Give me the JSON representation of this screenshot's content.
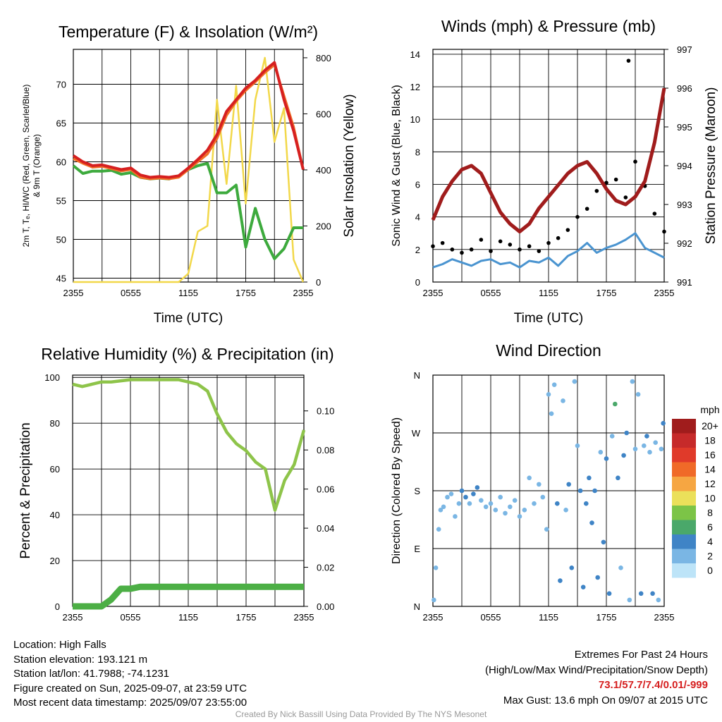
{
  "colors": {
    "temperature": "#d62020",
    "dewpoint": "#3daa3d",
    "heat_index": "#f07028",
    "insolation": "#f2d84a",
    "wind": "#4a94d0",
    "gust": "#000000",
    "pressure": "#a01c1c",
    "rh": "#8ec44a",
    "precip": "#4caf45",
    "extremes_text": "#d62020",
    "credit_text": "#999999"
  },
  "info": {
    "location": "Location: High Falls",
    "elevation": "Station elevation: 193.121 m",
    "latlon": "Station lat/lon: 41.7988; -74.1231",
    "created": "Figure created on Sun, 2025-09-07, at 23:59 UTC",
    "recent": "Most recent data timestamp: 2025/09/07 23:55:00"
  },
  "extremes": {
    "title": "Extremes For Past 24 Hours",
    "subtitle": "(High/Low/Max Wind/Precipitation/Snow Depth)",
    "values": "73.1/57.7/7.4/0.01/-999",
    "gust": "Max Gust: 13.6 mph On 09/07 at 2015 UTC"
  },
  "credit": "Created By Nick Bassill Using Data Provided By The NYS Mesonet",
  "chart_data": [
    {
      "type": "line",
      "title": "Temperature (F) & Insolation (W/m²)",
      "xlabel": "Time (UTC)",
      "ylabel_line1": "2m T, Tₑ, HI/WC (Red, Green, Scarlet/Blue)",
      "ylabel_line2": "& 9m T (Orange)",
      "ylabel_right": "Solar Insolation (Yellow)",
      "x_ticks": [
        "2355",
        "0555",
        "1155",
        "1755",
        "2355"
      ],
      "x": [
        0,
        1,
        2,
        3,
        4,
        5,
        6,
        7,
        8,
        9,
        10,
        11,
        12,
        13,
        14,
        15,
        16,
        17,
        18,
        19,
        20,
        21,
        22,
        23,
        24
      ],
      "ylim": [
        44.5,
        74.5
      ],
      "y_ticks": [
        45,
        50,
        55,
        60,
        65,
        70
      ],
      "ylim_right": [
        0,
        830
      ],
      "y_ticks_right": [
        0,
        200,
        400,
        600,
        800
      ],
      "series": [
        {
          "name": "Red",
          "axis": "left",
          "values": [
            60.8,
            60.0,
            59.5,
            59.6,
            59.3,
            59.0,
            59.2,
            58.3,
            58.0,
            58.1,
            58.0,
            58.2,
            59.2,
            60.3,
            61.5,
            63.5,
            66.5,
            68.0,
            69.5,
            70.5,
            71.8,
            72.8,
            68.0,
            64.0,
            59.0
          ]
        },
        {
          "name": "Orange",
          "axis": "left",
          "values": [
            60.4,
            59.8,
            59.3,
            59.4,
            59.1,
            58.8,
            59.0,
            58.0,
            57.8,
            57.9,
            57.8,
            58.0,
            59.0,
            60.0,
            61.0,
            63.0,
            66.0,
            67.8,
            69.2,
            70.3,
            71.5,
            72.5,
            68.5,
            64.5,
            59.0
          ]
        },
        {
          "name": "Green",
          "axis": "left",
          "values": [
            59.5,
            58.5,
            58.8,
            58.8,
            58.9,
            58.4,
            58.6,
            58.0,
            57.8,
            57.9,
            57.8,
            58.2,
            59.0,
            59.5,
            59.8,
            56.0,
            56.0,
            57.0,
            49.0,
            54.0,
            50.0,
            47.5,
            48.8,
            51.5,
            51.5
          ]
        },
        {
          "name": "Yellow",
          "axis": "right",
          "values": [
            0,
            0,
            0,
            0,
            0,
            0,
            0,
            0,
            0,
            0,
            0,
            0,
            30,
            180,
            200,
            650,
            350,
            700,
            280,
            650,
            800,
            500,
            620,
            80,
            0
          ]
        }
      ]
    },
    {
      "type": "scatter",
      "title": "Winds (mph) & Pressure (mb)",
      "xlabel": "Time (UTC)",
      "ylabel": "Sonic Wind & Gust (Blue, Black)",
      "ylabel_right": "Station Pressure (Maroon)",
      "x_ticks": [
        "2355",
        "0555",
        "1155",
        "1755",
        "2355"
      ],
      "x": [
        0,
        1,
        2,
        3,
        4,
        5,
        6,
        7,
        8,
        9,
        10,
        11,
        12,
        13,
        14,
        15,
        16,
        17,
        18,
        19,
        20,
        21,
        22,
        23,
        24
      ],
      "ylim": [
        0,
        14.3
      ],
      "y_ticks": [
        0,
        2,
        4,
        6,
        8,
        10,
        12,
        14
      ],
      "ylim_right": [
        991,
        997
      ],
      "y_ticks_right": [
        991,
        992,
        993,
        994,
        995,
        996,
        997
      ],
      "series": [
        {
          "name": "Blue",
          "axis": "left",
          "values": [
            0.9,
            1.1,
            1.4,
            1.2,
            1.0,
            1.3,
            1.4,
            1.1,
            1.2,
            0.9,
            1.3,
            1.2,
            1.5,
            1.0,
            1.6,
            1.9,
            2.4,
            1.8,
            2.1,
            2.3,
            2.6,
            3.0,
            2.1,
            1.8,
            1.5
          ]
        },
        {
          "name": "Black",
          "axis": "left",
          "values": [
            2.2,
            2.4,
            2.0,
            1.8,
            2.0,
            2.6,
            1.9,
            2.5,
            2.3,
            2.0,
            2.2,
            1.9,
            2.4,
            2.7,
            3.2,
            4.0,
            4.5,
            5.6,
            6.1,
            6.3,
            5.2,
            7.4,
            5.9,
            4.2,
            3.1
          ]
        },
        {
          "name": "Maroon",
          "axis": "right",
          "values": [
            992.6,
            993.2,
            993.6,
            993.9,
            994.0,
            993.8,
            993.3,
            992.8,
            992.5,
            992.3,
            992.5,
            992.9,
            993.2,
            993.5,
            993.8,
            994.0,
            994.1,
            993.8,
            993.4,
            993.1,
            993.0,
            993.2,
            993.6,
            994.6,
            996.0
          ]
        }
      ],
      "gust_max": 13.6
    },
    {
      "type": "line",
      "title": "Relative Humidity (%) & Precipitation (in)",
      "ylabel": "Percent & Precipitation",
      "x_ticks": [
        "2355",
        "0555",
        "1155",
        "1755",
        "2355"
      ],
      "x": [
        0,
        1,
        2,
        3,
        4,
        5,
        6,
        7,
        8,
        9,
        10,
        11,
        12,
        13,
        14,
        15,
        16,
        17,
        18,
        19,
        20,
        21,
        22,
        23,
        24
      ],
      "ylim": [
        0,
        101
      ],
      "y_ticks": [
        0,
        20,
        40,
        60,
        80,
        100
      ],
      "ylim_right": [
        0,
        0.1183
      ],
      "y_ticks_right": [
        "0.00",
        "0.02",
        "0.04",
        "0.06",
        "0.08",
        "0.10"
      ],
      "series": [
        {
          "name": "RH",
          "axis": "left",
          "values": [
            97,
            96,
            97,
            98,
            98,
            98.5,
            99,
            99,
            99,
            99,
            99,
            99,
            98,
            97,
            94,
            84,
            76,
            71,
            68,
            63,
            60,
            42,
            55,
            62,
            77
          ]
        },
        {
          "name": "Precip",
          "axis": "right",
          "values": [
            0,
            0,
            0,
            0,
            0.0035,
            0.009,
            0.009,
            0.01,
            0.01,
            0.01,
            0.01,
            0.01,
            0.01,
            0.01,
            0.01,
            0.01,
            0.01,
            0.01,
            0.01,
            0.01,
            0.01,
            0.01,
            0.01,
            0.01,
            0.01
          ]
        }
      ]
    },
    {
      "type": "scatter",
      "title": "Wind Direction",
      "ylabel": "Direction (Colored By Speed)",
      "x_ticks": [
        "2355",
        "0555",
        "1155",
        "1755",
        "2355"
      ],
      "y_ticks": [
        "N",
        "E",
        "S",
        "W",
        "N"
      ],
      "ylim": [
        0,
        360
      ],
      "legend": {
        "title": "mph",
        "labels": [
          "20+",
          "18",
          "16",
          "14",
          "12",
          "10",
          "8",
          "6",
          "4",
          "2",
          "0"
        ],
        "colors": [
          "#a01c1c",
          "#c62a2a",
          "#e03a2a",
          "#f06a28",
          "#f6a642",
          "#ebe05a",
          "#7cc447",
          "#4aa86a",
          "#3f84c6",
          "#7ab6e4",
          "#bde4f8"
        ]
      },
      "points": [
        {
          "x": 0.1,
          "dir": 10,
          "speed": 1
        },
        {
          "x": 0.3,
          "dir": 60,
          "speed": 1
        },
        {
          "x": 0.6,
          "dir": 120,
          "speed": 1
        },
        {
          "x": 0.8,
          "dir": 150,
          "speed": 1
        },
        {
          "x": 1.1,
          "dir": 155,
          "speed": 2
        },
        {
          "x": 1.5,
          "dir": 170,
          "speed": 1
        },
        {
          "x": 1.9,
          "dir": 175,
          "speed": 2
        },
        {
          "x": 2.3,
          "dir": 140,
          "speed": 2
        },
        {
          "x": 2.7,
          "dir": 160,
          "speed": 2
        },
        {
          "x": 3.0,
          "dir": 180,
          "speed": 3
        },
        {
          "x": 3.4,
          "dir": 170,
          "speed": 3
        },
        {
          "x": 3.8,
          "dir": 160,
          "speed": 2
        },
        {
          "x": 4.2,
          "dir": 175,
          "speed": 3
        },
        {
          "x": 4.6,
          "dir": 185,
          "speed": 3
        },
        {
          "x": 5.0,
          "dir": 165,
          "speed": 2
        },
        {
          "x": 5.5,
          "dir": 155,
          "speed": 2
        },
        {
          "x": 6.0,
          "dir": 160,
          "speed": 2
        },
        {
          "x": 6.5,
          "dir": 150,
          "speed": 2
        },
        {
          "x": 7.0,
          "dir": 170,
          "speed": 2
        },
        {
          "x": 7.5,
          "dir": 145,
          "speed": 2
        },
        {
          "x": 8.0,
          "dir": 155,
          "speed": 2
        },
        {
          "x": 8.5,
          "dir": 165,
          "speed": 2
        },
        {
          "x": 9.0,
          "dir": 140,
          "speed": 2
        },
        {
          "x": 9.5,
          "dir": 150,
          "speed": 1
        },
        {
          "x": 10.0,
          "dir": 200,
          "speed": 1
        },
        {
          "x": 10.5,
          "dir": 160,
          "speed": 2
        },
        {
          "x": 11.0,
          "dir": 190,
          "speed": 1
        },
        {
          "x": 11.4,
          "dir": 170,
          "speed": 2
        },
        {
          "x": 11.8,
          "dir": 120,
          "speed": 2
        },
        {
          "x": 12.0,
          "dir": 330,
          "speed": 1
        },
        {
          "x": 12.3,
          "dir": 300,
          "speed": 1
        },
        {
          "x": 12.6,
          "dir": 345,
          "speed": 1
        },
        {
          "x": 12.9,
          "dir": 160,
          "speed": 3
        },
        {
          "x": 13.2,
          "dir": 40,
          "speed": 3
        },
        {
          "x": 13.5,
          "dir": 320,
          "speed": 2
        },
        {
          "x": 13.8,
          "dir": 150,
          "speed": 2
        },
        {
          "x": 14.1,
          "dir": 190,
          "speed": 3
        },
        {
          "x": 14.4,
          "dir": 60,
          "speed": 3
        },
        {
          "x": 14.7,
          "dir": 350,
          "speed": 2
        },
        {
          "x": 15.0,
          "dir": 250,
          "speed": 2
        },
        {
          "x": 15.3,
          "dir": 180,
          "speed": 3
        },
        {
          "x": 15.6,
          "dir": 30,
          "speed": 4
        },
        {
          "x": 15.9,
          "dir": 160,
          "speed": 3
        },
        {
          "x": 16.2,
          "dir": 200,
          "speed": 3
        },
        {
          "x": 16.5,
          "dir": 130,
          "speed": 3
        },
        {
          "x": 16.8,
          "dir": 180,
          "speed": 4
        },
        {
          "x": 17.1,
          "dir": 45,
          "speed": 3
        },
        {
          "x": 17.4,
          "dir": 240,
          "speed": 2
        },
        {
          "x": 17.7,
          "dir": 100,
          "speed": 4
        },
        {
          "x": 18.0,
          "dir": 230,
          "speed": 3
        },
        {
          "x": 18.3,
          "dir": 20,
          "speed": 3
        },
        {
          "x": 18.6,
          "dir": 265,
          "speed": 2
        },
        {
          "x": 18.9,
          "dir": 315,
          "speed": 6
        },
        {
          "x": 19.2,
          "dir": 200,
          "speed": 3
        },
        {
          "x": 19.5,
          "dir": 60,
          "speed": 2
        },
        {
          "x": 19.8,
          "dir": 235,
          "speed": 3
        },
        {
          "x": 20.1,
          "dir": 270,
          "speed": 3
        },
        {
          "x": 20.4,
          "dir": 10,
          "speed": 2
        },
        {
          "x": 20.7,
          "dir": 350,
          "speed": 1
        },
        {
          "x": 21.0,
          "dir": 245,
          "speed": 2
        },
        {
          "x": 21.3,
          "dir": 330,
          "speed": 2
        },
        {
          "x": 21.6,
          "dir": 20,
          "speed": 3
        },
        {
          "x": 21.9,
          "dir": 250,
          "speed": 2
        },
        {
          "x": 22.2,
          "dir": 265,
          "speed": 3
        },
        {
          "x": 22.5,
          "dir": 240,
          "speed": 2
        },
        {
          "x": 22.8,
          "dir": 20,
          "speed": 3
        },
        {
          "x": 23.1,
          "dir": 255,
          "speed": 2
        },
        {
          "x": 23.4,
          "dir": 10,
          "speed": 2
        },
        {
          "x": 23.7,
          "dir": 245,
          "speed": 1
        },
        {
          "x": 23.9,
          "dir": 285,
          "speed": 3
        }
      ]
    }
  ]
}
